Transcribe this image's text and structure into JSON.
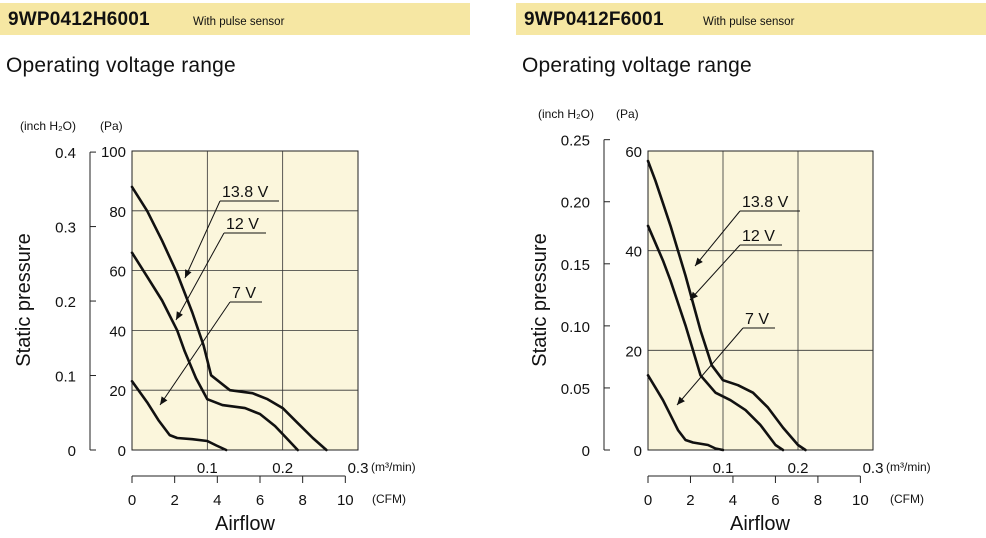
{
  "panels": [
    {
      "model": "9WP0412H6001",
      "note": "With pulse sensor",
      "title": "Operating voltage range",
      "chart_data": {
        "type": "line",
        "title": "Operating voltage range",
        "xlabel": "Airflow",
        "ylabel": "Static pressure",
        "x_unit_primary": "(m³/min)",
        "x_unit_secondary": "(CFM)",
        "y_unit_primary": "(Pa)",
        "y_unit_secondary": "(inch H₂O)",
        "xlim": [
          0,
          0.3
        ],
        "ylim": [
          0,
          100
        ],
        "x_ticks": [
          0,
          0.1,
          0.2,
          0.3
        ],
        "x_tick_labels": [
          "",
          "0.1",
          "0.2",
          "0.3"
        ],
        "y_ticks": [
          0,
          20,
          40,
          60,
          80,
          100
        ],
        "y_tick_labels": [
          "0",
          "20",
          "40",
          "60",
          "80",
          "100"
        ],
        "cfm_ticks": [
          0,
          2,
          4,
          6,
          8,
          10
        ],
        "cfm_tick_labels": [
          "0",
          "2",
          "4",
          "6",
          "8",
          "10"
        ],
        "inch_ticks": [
          0,
          0.1,
          0.2,
          0.3,
          0.4
        ],
        "inch_tick_labels": [
          "0",
          "0.1",
          "0.2",
          "0.3",
          "0.4"
        ],
        "grid": true,
        "series": [
          {
            "name": "13.8 V",
            "x": [
              0,
              0.02,
              0.04,
              0.06,
              0.08,
              0.095,
              0.105,
              0.13,
              0.16,
              0.18,
              0.2,
              0.22,
              0.24,
              0.258
            ],
            "y": [
              88,
              80,
              70,
              59,
              46,
              35,
              25,
              20,
              19,
              17,
              14,
              9,
              4,
              0
            ]
          },
          {
            "name": "12 V",
            "x": [
              0,
              0.02,
              0.04,
              0.06,
              0.07,
              0.085,
              0.1,
              0.12,
              0.15,
              0.17,
              0.19,
              0.205,
              0.22
            ],
            "y": [
              66,
              58,
              50,
              40,
              33,
              24,
              17,
              15,
              14,
              12,
              8,
              4,
              0
            ]
          },
          {
            "name": "7 V",
            "x": [
              0,
              0.02,
              0.035,
              0.05,
              0.06,
              0.08,
              0.1,
              0.112,
              0.125
            ],
            "y": [
              23,
              16,
              10,
              5,
              4,
              3.6,
              3,
              1.5,
              0
            ]
          }
        ]
      }
    },
    {
      "model": "9WP0412F6001",
      "note": "With pulse sensor",
      "title": "Operating voltage range",
      "chart_data": {
        "type": "line",
        "title": "Operating voltage range",
        "xlabel": "Airflow",
        "ylabel": "Static pressure",
        "x_unit_primary": "(m³/min)",
        "x_unit_secondary": "(CFM)",
        "y_unit_primary": "(Pa)",
        "y_unit_secondary": "(inch H₂O)",
        "xlim": [
          0,
          0.3
        ],
        "ylim": [
          0,
          60
        ],
        "x_ticks": [
          0,
          0.1,
          0.2,
          0.3
        ],
        "x_tick_labels": [
          "",
          "0.1",
          "0.2",
          "0.3"
        ],
        "y_ticks": [
          0,
          20,
          40,
          60
        ],
        "y_tick_labels": [
          "0",
          "20",
          "40",
          "60"
        ],
        "cfm_ticks": [
          0,
          2,
          4,
          6,
          8,
          10
        ],
        "cfm_tick_labels": [
          "0",
          "2",
          "4",
          "6",
          "8",
          "10"
        ],
        "inch_ticks": [
          0,
          0.05,
          0.1,
          0.15,
          0.2,
          0.25
        ],
        "inch_tick_labels": [
          "0",
          "0.05",
          "0.10",
          "0.15",
          "0.20",
          "0.25"
        ],
        "grid": true,
        "series": [
          {
            "name": "13.8 V",
            "x": [
              0,
              0.01,
              0.02,
              0.03,
              0.04,
              0.05,
              0.06,
              0.07,
              0.085,
              0.1,
              0.12,
              0.14,
              0.16,
              0.18,
              0.2,
              0.21
            ],
            "y": [
              58,
              54,
              49.5,
              45,
              40,
              35,
              29.5,
              24,
              17,
              14,
              13,
              11.5,
              8.5,
              4.5,
              1,
              0
            ]
          },
          {
            "name": "12 V",
            "x": [
              0,
              0.01,
              0.02,
              0.03,
              0.04,
              0.05,
              0.06,
              0.07,
              0.09,
              0.11,
              0.13,
              0.15,
              0.17,
              0.18
            ],
            "y": [
              45,
              41.5,
              38,
              34,
              29.5,
              25,
              20,
              15,
              11.5,
              10,
              8,
              5,
              1,
              0
            ]
          },
          {
            "name": "7 V",
            "x": [
              0,
              0.01,
              0.02,
              0.03,
              0.04,
              0.05,
              0.06,
              0.08,
              0.09,
              0.1
            ],
            "y": [
              15,
              12.5,
              10,
              7,
              4,
              2,
              1.5,
              1,
              0.3,
              0
            ]
          }
        ]
      }
    }
  ]
}
